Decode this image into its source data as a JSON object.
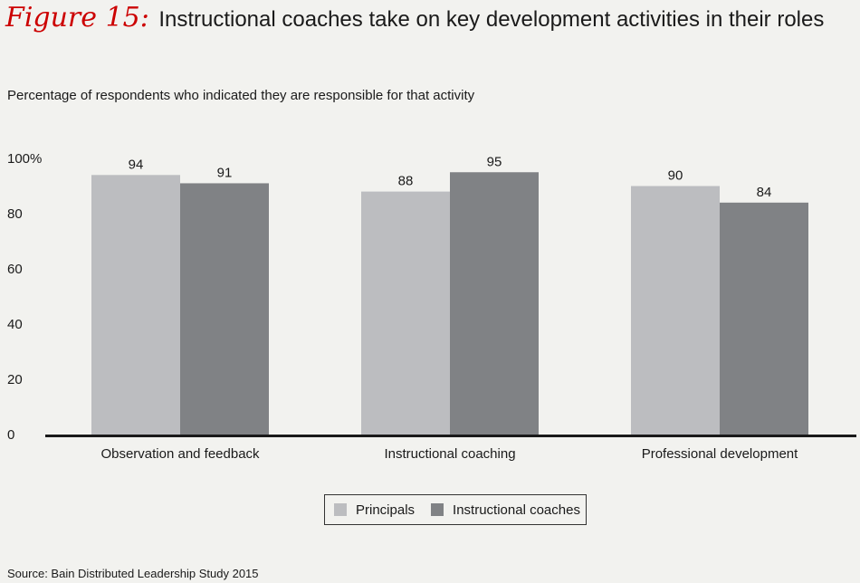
{
  "header": {
    "figure_label": "Figure 15:",
    "title": "Instructional coaches take on key development activities in their roles"
  },
  "subtitle": "Percentage of respondents who indicated they are responsible for that activity",
  "source": "Source: Bain Distributed Leadership Study 2015",
  "colors": {
    "principals": "#bcbdc0",
    "coaches": "#808285",
    "axis": "#1a1a1a"
  },
  "chart_data": {
    "type": "bar",
    "categories": [
      "Observation and feedback",
      "Instructional coaching",
      "Professional development"
    ],
    "series": [
      {
        "name": "Principals",
        "values": [
          94,
          88,
          90
        ]
      },
      {
        "name": "Instructional coaches",
        "values": [
          91,
          95,
          84
        ]
      }
    ],
    "ylim": [
      0,
      100
    ],
    "yticks": [
      "0",
      "20",
      "40",
      "60",
      "80",
      "100%"
    ],
    "legend": "bottom-center",
    "grid": false
  }
}
